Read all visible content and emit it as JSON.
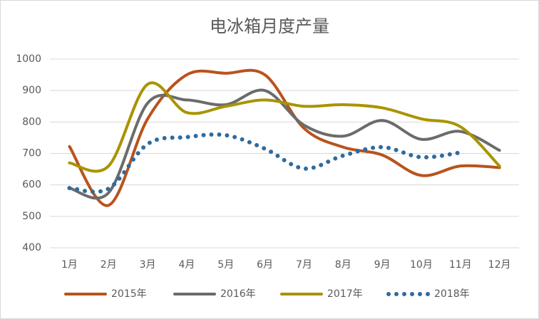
{
  "chart_data": {
    "type": "line",
    "title": "电冰箱月度产量",
    "categories": [
      "1月",
      "2月",
      "3月",
      "4月",
      "5月",
      "6月",
      "7月",
      "8月",
      "9月",
      "10月",
      "11月",
      "12月"
    ],
    "series": [
      {
        "name": "2015年",
        "color": "#b9531c",
        "style": "solid",
        "values": [
          722,
          535,
          810,
          950,
          955,
          950,
          780,
          720,
          695,
          630,
          660,
          655
        ]
      },
      {
        "name": "2016年",
        "color": "#6b6b6b",
        "style": "solid",
        "values": [
          590,
          575,
          860,
          870,
          855,
          900,
          790,
          755,
          805,
          745,
          770,
          710
        ]
      },
      {
        "name": "2017年",
        "color": "#a89400",
        "style": "solid",
        "values": [
          670,
          660,
          920,
          830,
          850,
          870,
          850,
          855,
          845,
          810,
          785,
          660
        ]
      },
      {
        "name": "2018年",
        "color": "#2f6b9e",
        "style": "dotted",
        "values": [
          590,
          588,
          730,
          752,
          758,
          715,
          652,
          693,
          720,
          688,
          703,
          null
        ]
      }
    ],
    "ylim": [
      400,
      1000
    ],
    "yticks": [
      400,
      500,
      600,
      700,
      800,
      900,
      1000
    ],
    "grid": true,
    "smooth": true,
    "legend": "bottom"
  }
}
